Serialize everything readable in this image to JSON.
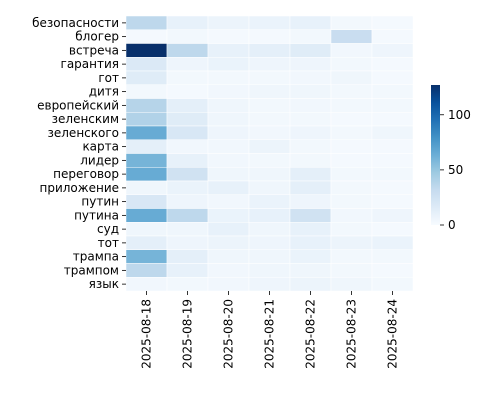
{
  "chart_data": {
    "type": "heatmap",
    "categories_x": [
      "2025-08-18",
      "2025-08-19",
      "2025-08-20",
      "2025-08-21",
      "2025-08-22",
      "2025-08-23",
      "2025-08-24"
    ],
    "categories_y": [
      "безопасности",
      "блогер",
      "встреча",
      "гарантия",
      "гот",
      "дитя",
      "европейский",
      "зеленским",
      "зеленского",
      "карта",
      "лидер",
      "переговор",
      "приложение",
      "путин",
      "путина",
      "суд",
      "тот",
      "трампа",
      "трампом",
      "язык"
    ],
    "values": [
      [
        35,
        10,
        7,
        8,
        10,
        3,
        2
      ],
      [
        2,
        3,
        2,
        2,
        3,
        30,
        2
      ],
      [
        127,
        35,
        10,
        12,
        15,
        4,
        6
      ],
      [
        18,
        6,
        8,
        6,
        6,
        3,
        2
      ],
      [
        15,
        3,
        3,
        3,
        4,
        5,
        2
      ],
      [
        3,
        2,
        4,
        5,
        5,
        3,
        3
      ],
      [
        38,
        12,
        5,
        3,
        4,
        3,
        3
      ],
      [
        40,
        15,
        5,
        3,
        3,
        2,
        2
      ],
      [
        65,
        20,
        6,
        4,
        6,
        3,
        5
      ],
      [
        12,
        4,
        4,
        7,
        3,
        2,
        2
      ],
      [
        60,
        10,
        4,
        3,
        3,
        2,
        2
      ],
      [
        65,
        25,
        5,
        5,
        12,
        3,
        3
      ],
      [
        5,
        8,
        10,
        5,
        12,
        3,
        2
      ],
      [
        20,
        6,
        4,
        8,
        6,
        3,
        2
      ],
      [
        65,
        35,
        8,
        10,
        25,
        4,
        6
      ],
      [
        5,
        5,
        10,
        5,
        10,
        3,
        2
      ],
      [
        12,
        6,
        7,
        6,
        10,
        7,
        8
      ],
      [
        60,
        12,
        5,
        5,
        8,
        3,
        3
      ],
      [
        35,
        10,
        4,
        5,
        5,
        3,
        2
      ],
      [
        4,
        3,
        4,
        6,
        7,
        5,
        3
      ]
    ],
    "colorbar": {
      "min": 0,
      "max": 127,
      "ticks": [
        0,
        50,
        100
      ],
      "tick_labels": [
        "0",
        "50",
        "100"
      ]
    },
    "colormap": {
      "name": "Blues",
      "stops": [
        "#f7fbff",
        "#deebf7",
        "#c6dbef",
        "#9ecae1",
        "#6baed6",
        "#4292c6",
        "#2171b5",
        "#08519c",
        "#08306b"
      ]
    },
    "cell_border_color": "#ffffff",
    "title": "",
    "xlabel": "",
    "ylabel": ""
  }
}
